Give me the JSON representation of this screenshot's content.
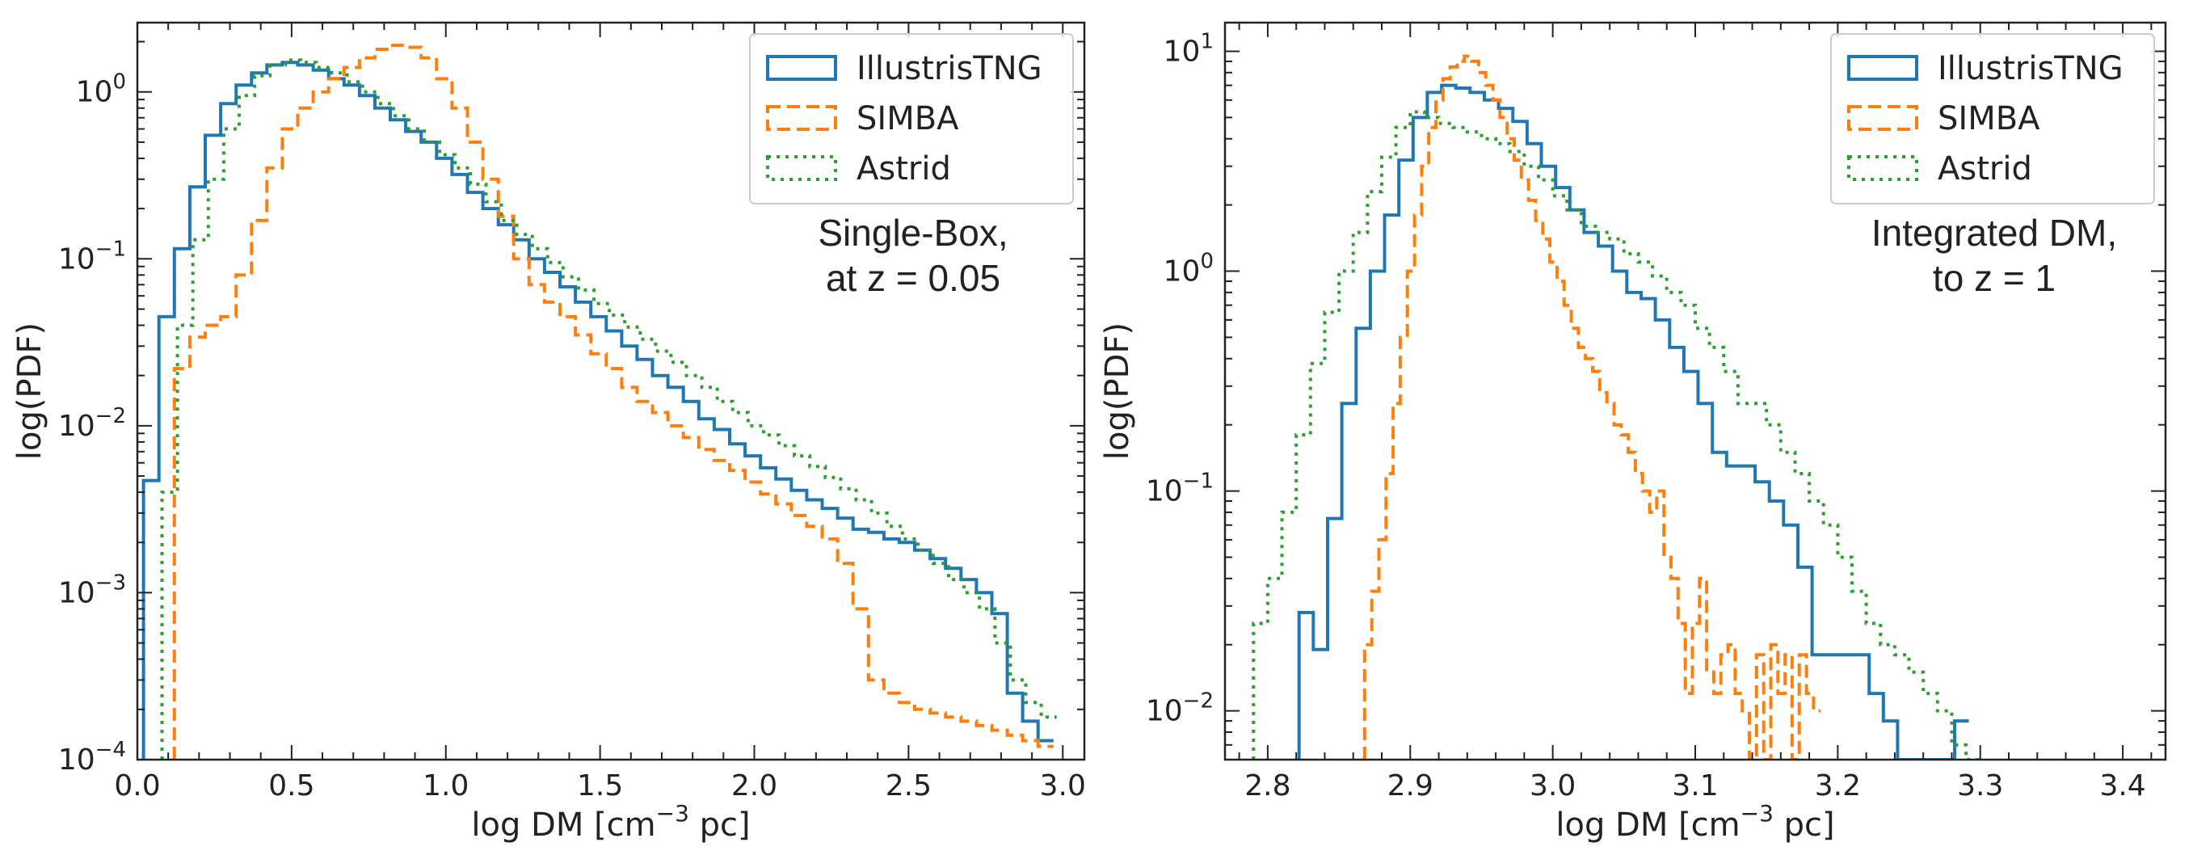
{
  "colors": {
    "IllustrisTNG": "#1f77b4",
    "SIMBA": "#ff7f0e",
    "Astrid": "#2ca02c"
  },
  "chart_data": [
    {
      "type": "histogram-step",
      "title": "",
      "xlabel": "log DM [cm",
      "xlabel_sup": "−3",
      "xlabel_tail": " pc]",
      "ylabel": "log(PDF)",
      "yscale": "log",
      "xlim": [
        0.0,
        3.07
      ],
      "ylim": [
        0.0001,
        2.6
      ],
      "xticks": [
        {
          "v": 0.0,
          "label": "0.0"
        },
        {
          "v": 0.5,
          "label": "0.5"
        },
        {
          "v": 1.0,
          "label": "1.0"
        },
        {
          "v": 1.5,
          "label": "1.5"
        },
        {
          "v": 2.0,
          "label": "2.0"
        },
        {
          "v": 2.5,
          "label": "2.5"
        },
        {
          "v": 3.0,
          "label": "3.0"
        }
      ],
      "yticks": [
        {
          "v": 0.0001,
          "base": "10",
          "exp": "−4"
        },
        {
          "v": 0.001,
          "base": "10",
          "exp": "−3"
        },
        {
          "v": 0.01,
          "base": "10",
          "exp": "−2"
        },
        {
          "v": 0.1,
          "base": "10",
          "exp": "−1"
        },
        {
          "v": 1,
          "base": "10",
          "exp": "0"
        }
      ],
      "annotation": [
        "Single-Box,",
        "at z = 0.05"
      ],
      "legend": [
        "IllustrisTNG",
        "SIMBA",
        "Astrid"
      ],
      "legend_loc": "upper right",
      "series": [
        {
          "name": "IllustrisTNG",
          "dash": "solid",
          "x0": 0.02,
          "bin": 0.05,
          "values": [
            0.0047,
            0.045,
            0.115,
            0.27,
            0.55,
            0.85,
            1.1,
            1.3,
            1.45,
            1.5,
            1.45,
            1.35,
            1.2,
            1.1,
            0.95,
            0.8,
            0.68,
            0.58,
            0.5,
            0.4,
            0.32,
            0.25,
            0.2,
            0.16,
            0.13,
            0.1,
            0.083,
            0.068,
            0.055,
            0.045,
            0.037,
            0.03,
            0.025,
            0.02,
            0.017,
            0.014,
            0.011,
            0.0095,
            0.0078,
            0.0066,
            0.0056,
            0.0048,
            0.0041,
            0.0036,
            0.0032,
            0.0028,
            0.0024,
            0.0023,
            0.0021,
            0.002,
            0.0018,
            0.0016,
            0.0014,
            0.0012,
            0.001,
            0.00075,
            0.00025,
            0.00017,
            0.00013
          ]
        },
        {
          "name": "SIMBA",
          "dash": "dashed",
          "x0": 0.12,
          "bin": 0.05,
          "values": [
            0.022,
            0.034,
            0.04,
            0.045,
            0.08,
            0.17,
            0.35,
            0.6,
            0.8,
            1.0,
            1.2,
            1.4,
            1.6,
            1.8,
            1.9,
            1.85,
            1.6,
            1.2,
            0.8,
            0.5,
            0.3,
            0.18,
            0.1,
            0.07,
            0.055,
            0.045,
            0.035,
            0.027,
            0.022,
            0.017,
            0.014,
            0.012,
            0.01,
            0.0085,
            0.0072,
            0.0062,
            0.0054,
            0.0046,
            0.0039,
            0.0034,
            0.0029,
            0.0025,
            0.0021,
            0.0015,
            0.0008,
            0.0003,
            0.00025,
            0.00022,
            0.0002,
            0.00019,
            0.00018,
            0.00017,
            0.00016,
            0.00015,
            0.00014,
            0.00013,
            0.00012
          ]
        },
        {
          "name": "Astrid",
          "dash": "dotted",
          "x0": 0.08,
          "bin": 0.05,
          "values": [
            0.004,
            0.04,
            0.13,
            0.3,
            0.6,
            0.95,
            1.25,
            1.45,
            1.55,
            1.5,
            1.4,
            1.3,
            1.15,
            1.0,
            0.85,
            0.72,
            0.6,
            0.5,
            0.42,
            0.35,
            0.28,
            0.22,
            0.17,
            0.14,
            0.115,
            0.095,
            0.078,
            0.065,
            0.054,
            0.046,
            0.039,
            0.033,
            0.028,
            0.024,
            0.02,
            0.017,
            0.014,
            0.012,
            0.01,
            0.0088,
            0.0076,
            0.0066,
            0.0057,
            0.0049,
            0.0042,
            0.0036,
            0.003,
            0.0025,
            0.0021,
            0.0018,
            0.0015,
            0.0012,
            0.001,
            0.0008,
            0.0005,
            0.0003,
            0.00022,
            0.00018
          ]
        }
      ]
    },
    {
      "type": "histogram-step",
      "title": "",
      "xlabel": "log DM [cm",
      "xlabel_sup": "−3",
      "xlabel_tail": " pc]",
      "ylabel": "log(PDF)",
      "yscale": "log",
      "xlim": [
        2.77,
        3.43
      ],
      "ylim": [
        0.006,
        13.5
      ],
      "xticks": [
        {
          "v": 2.8,
          "label": "2.8"
        },
        {
          "v": 2.9,
          "label": "2.9"
        },
        {
          "v": 3.0,
          "label": "3.0"
        },
        {
          "v": 3.1,
          "label": "3.1"
        },
        {
          "v": 3.2,
          "label": "3.2"
        },
        {
          "v": 3.3,
          "label": "3.3"
        },
        {
          "v": 3.4,
          "label": "3.4"
        }
      ],
      "yticks": [
        {
          "v": 0.01,
          "base": "10",
          "exp": "−2"
        },
        {
          "v": 0.1,
          "base": "10",
          "exp": "−1"
        },
        {
          "v": 1,
          "base": "10",
          "exp": "0"
        },
        {
          "v": 10,
          "base": "10",
          "exp": "1"
        }
      ],
      "annotation": [
        "Integrated DM,",
        "to z = 1"
      ],
      "legend": [
        "IllustrisTNG",
        "SIMBA",
        "Astrid"
      ],
      "legend_loc": "upper right",
      "series": [
        {
          "name": "IllustrisTNG",
          "dash": "solid",
          "x0": 2.822,
          "bin": 0.01,
          "values": [
            0.028,
            0.019,
            0.075,
            0.25,
            0.55,
            1.0,
            1.8,
            3.2,
            5.0,
            6.5,
            7.0,
            6.8,
            6.5,
            6.0,
            5.5,
            4.8,
            3.8,
            3.0,
            2.4,
            1.9,
            1.5,
            1.3,
            1.0,
            0.8,
            0.75,
            0.6,
            0.45,
            0.35,
            0.25,
            0.15,
            0.13,
            0.13,
            0.11,
            0.09,
            0.07,
            0.045,
            0.018,
            0.018,
            0.018,
            0.018,
            0.012,
            0.009,
            0.006,
            0.006,
            0.006,
            0.006,
            0.009
          ]
        },
        {
          "name": "SIMBA",
          "dash": "dashed",
          "x0": 2.868,
          "bin": 0.005,
          "values": [
            0.02,
            0.035,
            0.06,
            0.12,
            0.25,
            0.5,
            1.0,
            1.8,
            3.0,
            4.5,
            6.0,
            7.5,
            8.5,
            9.0,
            9.5,
            9.0,
            8.0,
            7.0,
            6.0,
            5.0,
            4.0,
            3.2,
            2.6,
            2.1,
            1.7,
            1.4,
            1.1,
            0.9,
            0.7,
            0.55,
            0.45,
            0.4,
            0.35,
            0.28,
            0.25,
            0.2,
            0.18,
            0.15,
            0.12,
            0.1,
            0.08,
            0.1,
            0.05,
            0.04,
            0.025,
            0.012,
            0.025,
            0.04,
            0.015,
            0.012,
            0.018,
            0.02,
            0.012,
            0.01,
            0.006,
            0.018,
            0.006,
            0.02,
            0.012,
            0.018,
            0.006,
            0.018,
            0.012,
            0.01
          ]
        },
        {
          "name": "Astrid",
          "dash": "dotted",
          "x0": 2.79,
          "bin": 0.01,
          "values": [
            0.025,
            0.04,
            0.08,
            0.18,
            0.38,
            0.65,
            1.0,
            1.5,
            2.3,
            3.3,
            4.5,
            5.3,
            5.0,
            4.7,
            4.5,
            4.3,
            4.0,
            3.8,
            3.5,
            3.0,
            2.6,
            2.2,
            1.9,
            1.6,
            1.5,
            1.4,
            1.2,
            1.1,
            0.95,
            0.8,
            0.7,
            0.55,
            0.45,
            0.35,
            0.25,
            0.25,
            0.2,
            0.15,
            0.12,
            0.09,
            0.07,
            0.05,
            0.035,
            0.025,
            0.02,
            0.018,
            0.015,
            0.012,
            0.01,
            0.007,
            0.006
          ]
        }
      ]
    }
  ]
}
